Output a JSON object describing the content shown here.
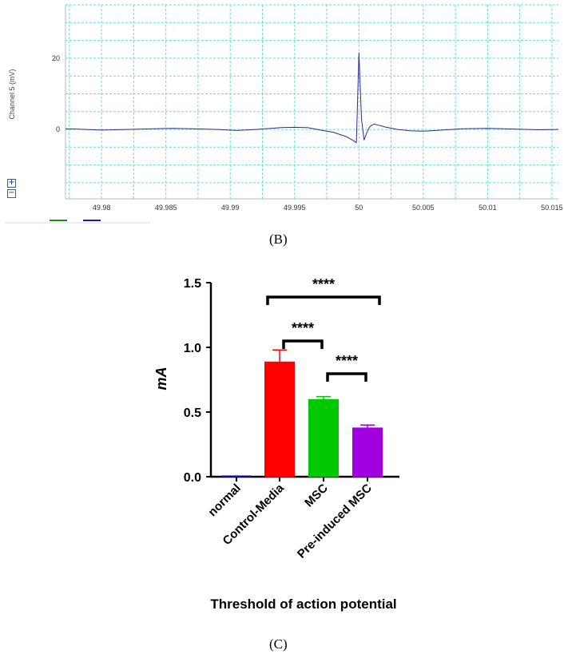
{
  "panel_b_label": "(B)",
  "panel_c_label": "(C)",
  "zoom_controls": {
    "plus": "+",
    "minus": "−"
  },
  "colors": {
    "trace": "#2b2b8f",
    "grid": "#66dede",
    "legend_green": "#1a8a1a",
    "legend_blue": "#1a1aa0"
  },
  "chart_data": [
    {
      "type": "line",
      "ylabel": "Channel 5 (mV)",
      "xlabel": "",
      "title": "",
      "xlim": [
        49.9772,
        50.0155
      ],
      "ylim": [
        -19.5,
        35
      ],
      "x_tick_labels": [
        "49.98",
        "49.985",
        "49.99",
        "49.995",
        "50",
        "50.005",
        "50.01",
        "50.015"
      ],
      "x_ticks": [
        49.98,
        49.985,
        49.99,
        49.995,
        50,
        50.005,
        50.01,
        50.015
      ],
      "y_tick_labels": [
        "20",
        "0"
      ],
      "y_ticks": [
        20,
        0
      ],
      "grid": true,
      "series": [
        {
          "x": [
            49.9772,
            49.978,
            49.98,
            49.982,
            49.984,
            49.9855,
            49.987,
            49.989,
            49.9905,
            49.992,
            49.994,
            49.995,
            49.996,
            49.997,
            49.998,
            49.999,
            49.9995,
            49.9998,
            50.0,
            50.0002,
            50.0004,
            50.0006,
            50.0008,
            50.001,
            50.0012,
            50.0015,
            50.002,
            50.003,
            50.004,
            50.005,
            50.006,
            50.008,
            50.01,
            50.012,
            50.014,
            50.0155
          ],
          "y": [
            0.2,
            0.1,
            -0.2,
            0.0,
            0.2,
            0.3,
            0.2,
            0.0,
            -0.3,
            0.0,
            0.5,
            0.6,
            0.5,
            -0.2,
            -0.8,
            -2.0,
            -3.0,
            -3.7,
            21.5,
            3.0,
            -3.0,
            -1.0,
            0.5,
            1.2,
            1.5,
            1.2,
            0.7,
            0.0,
            -0.4,
            -0.5,
            -0.3,
            0.2,
            0.3,
            0.1,
            -0.1,
            0.0
          ]
        }
      ]
    },
    {
      "type": "bar",
      "title": "",
      "xlabel": "Threshold of action potential",
      "ylabel": "mA",
      "ylim": [
        0,
        1.5
      ],
      "y_ticks": [
        0.0,
        0.5,
        1.0,
        1.5
      ],
      "y_tick_labels": [
        "0.0",
        "0.5",
        "1.0",
        "1.5"
      ],
      "categories": [
        "normal",
        "Control-Media",
        "MSC",
        "Pre-induced MSC"
      ],
      "values": [
        0.01,
        0.89,
        0.6,
        0.38
      ],
      "errors": [
        0.0,
        0.09,
        0.02,
        0.02
      ],
      "colors": [
        "#1a1aa0",
        "#ff0000",
        "#00c800",
        "#a000e0"
      ],
      "significance": [
        {
          "from": 1,
          "to": 3,
          "label": "****"
        },
        {
          "from": 1,
          "to": 2,
          "label": "****"
        },
        {
          "from": 2,
          "to": 3,
          "label": "****"
        }
      ]
    }
  ]
}
